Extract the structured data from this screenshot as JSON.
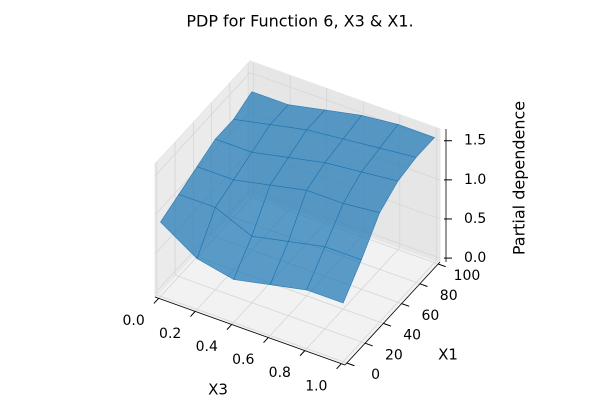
{
  "chart_data": {
    "type": "surface3d",
    "title": "PDP for Function 6, X3 & X1.",
    "xlabel": "X3",
    "ylabel": "X1",
    "zlabel": "Partial dependence",
    "x": [
      0,
      0.2,
      0.4,
      0.6,
      0.8,
      1.0
    ],
    "y": [
      0,
      20,
      40,
      60,
      80,
      100
    ],
    "z": [
      [
        0.9,
        1.0,
        1.1,
        1.2,
        1.2,
        1.3
      ],
      [
        0.6,
        1.0,
        1.1,
        1.2,
        1.3,
        1.3
      ],
      [
        0.5,
        0.8,
        1.2,
        1.3,
        1.4,
        1.4
      ],
      [
        0.6,
        0.9,
        1.3,
        1.4,
        1.45,
        1.5
      ],
      [
        0.7,
        1.0,
        1.3,
        1.45,
        1.5,
        1.55
      ],
      [
        0.7,
        1.0,
        1.35,
        1.5,
        1.55,
        1.55
      ]
    ],
    "xlim": [
      -0.02,
      1.02
    ],
    "ylim": [
      -2,
      102
    ],
    "zlim": [
      -0.05,
      1.65
    ],
    "xticks": [
      {
        "value": 0,
        "label": "0.0"
      },
      {
        "value": 0.2,
        "label": "0.2"
      },
      {
        "value": 0.4,
        "label": "0.4"
      },
      {
        "value": 0.6,
        "label": "0.6"
      },
      {
        "value": 0.8,
        "label": "0.8"
      },
      {
        "value": 1,
        "label": "1.0"
      }
    ],
    "yticks": [
      0,
      20,
      40,
      60,
      80,
      100
    ],
    "zticks": [
      {
        "value": 0,
        "label": "0.0"
      },
      {
        "value": 0.5,
        "label": "0.5"
      },
      {
        "value": 1,
        "label": "1.0"
      },
      {
        "value": 1.5,
        "label": "1.5"
      }
    ],
    "color": "#1f77b4",
    "grid": true
  }
}
